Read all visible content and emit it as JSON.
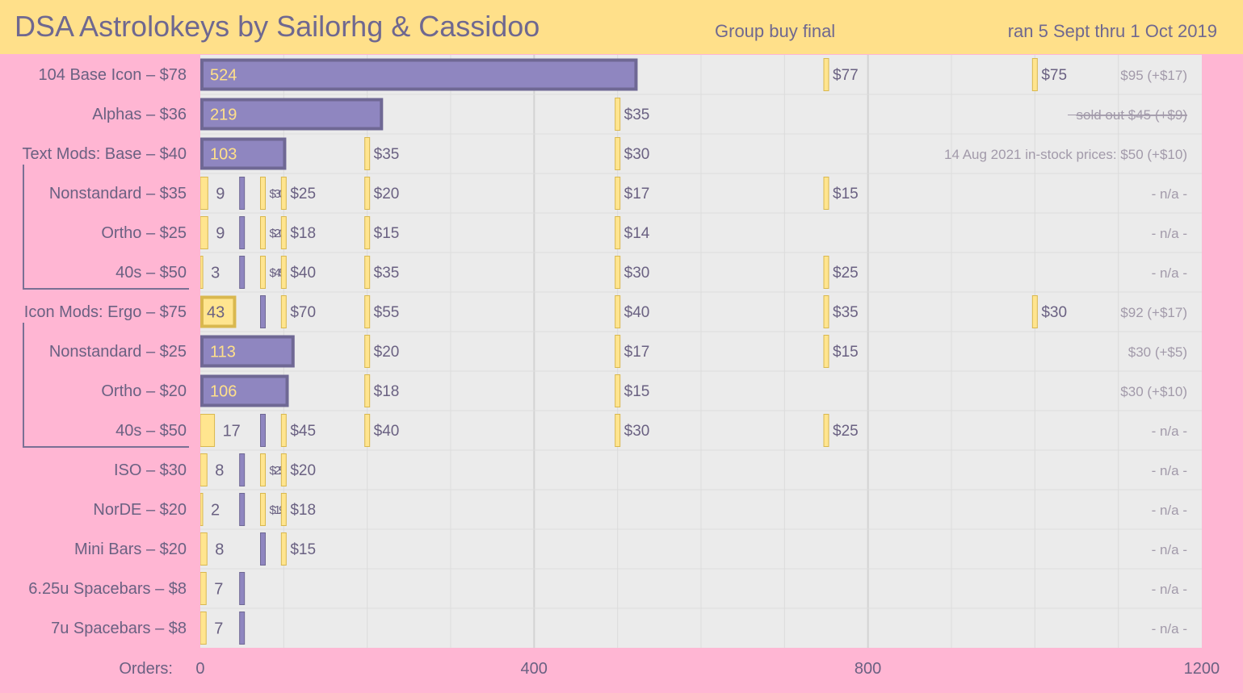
{
  "header": {
    "title": "DSA Astrolokeys by Sailorhg & Cassidoo",
    "subtitle": "Group buy final",
    "date_range": "ran 5 Sept thru 1 Oct 2019"
  },
  "colors": {
    "bar_fill": "#8f86c0",
    "bar_border": "#6f6894",
    "bar_text": "#ffe08a",
    "gold": "#ffe58f",
    "gold_dark": "#d9b84f",
    "background": "#ffb6d3",
    "plot_bg": "#ebebeb",
    "grid": "#dcdcdc",
    "muted_text": "#a29aaa"
  },
  "chart_data": {
    "type": "bar",
    "orientation": "horizontal",
    "xlabel": "Orders:",
    "xlim": [
      0,
      1200
    ],
    "x_ticks": [
      0,
      400,
      800,
      1200
    ],
    "x_tick_labels": [
      "0",
      "400",
      "800",
      "1200"
    ],
    "grid": true,
    "rows": [
      {
        "label": "104 Base Icon – $78",
        "orders": 524,
        "style": "bar",
        "tiers": [
          {
            "x": 750,
            "label": "$77"
          },
          {
            "x": 1000,
            "label": "$75"
          }
        ],
        "note": "$95 (+$17)"
      },
      {
        "label": "Alphas – $36",
        "orders": 219,
        "style": "bar",
        "tiers": [
          {
            "x": 500,
            "label": "$35"
          }
        ],
        "note": "sold out  $45  (+$9)",
        "note_struck": true
      },
      {
        "label": "Text Mods: Base – $40",
        "orders": 103,
        "style": "bar",
        "tiers": [
          {
            "x": 200,
            "label": "$35"
          },
          {
            "x": 500,
            "label": "$30"
          }
        ],
        "note": "14 Aug 2021 in-stock prices:   $50  (+$10)"
      },
      {
        "label": "Nonstandard – $35",
        "orders": 9,
        "style": "marker",
        "tiers": [
          {
            "x": 50,
            "label": ""
          },
          {
            "x": 75,
            "label": "$30",
            "small": true
          },
          {
            "x": 100,
            "label": "$25"
          },
          {
            "x": 200,
            "label": "$20"
          },
          {
            "x": 500,
            "label": "$17"
          },
          {
            "x": 750,
            "label": "$15"
          }
        ],
        "note": "- n/a -"
      },
      {
        "label": "Ortho – $25",
        "orders": 9,
        "style": "marker",
        "tiers": [
          {
            "x": 50,
            "label": ""
          },
          {
            "x": 75,
            "label": "$20",
            "small": true
          },
          {
            "x": 100,
            "label": "$18"
          },
          {
            "x": 200,
            "label": "$15"
          },
          {
            "x": 500,
            "label": "$14"
          }
        ],
        "note": "- n/a -"
      },
      {
        "label": "40s – $50",
        "orders": 3,
        "style": "marker",
        "tiers": [
          {
            "x": 50,
            "label": ""
          },
          {
            "x": 75,
            "label": "$45",
            "small": true
          },
          {
            "x": 100,
            "label": "$40"
          },
          {
            "x": 200,
            "label": "$35"
          },
          {
            "x": 500,
            "label": "$30"
          },
          {
            "x": 750,
            "label": "$25"
          }
        ],
        "note": "- n/a -"
      },
      {
        "label": "Icon Mods:  Ergo – $75",
        "orders": 43,
        "style": "goldbar",
        "tiers": [
          {
            "x": 75,
            "label": ""
          },
          {
            "x": 100,
            "label": "$70"
          },
          {
            "x": 200,
            "label": "$55"
          },
          {
            "x": 500,
            "label": "$40"
          },
          {
            "x": 750,
            "label": "$35"
          },
          {
            "x": 1000,
            "label": "$30"
          }
        ],
        "note": "$92 (+$17)"
      },
      {
        "label": "Nonstandard – $25",
        "orders": 113,
        "style": "bar",
        "tiers": [
          {
            "x": 200,
            "label": "$20"
          },
          {
            "x": 500,
            "label": "$17"
          },
          {
            "x": 750,
            "label": "$15"
          }
        ],
        "note": "$30 (+$5)"
      },
      {
        "label": "Ortho – $20",
        "orders": 106,
        "style": "bar",
        "tiers": [
          {
            "x": 200,
            "label": "$18"
          },
          {
            "x": 500,
            "label": "$15"
          }
        ],
        "note": "$30 (+$10)"
      },
      {
        "label": "40s – $50",
        "orders": 17,
        "style": "marker",
        "tiers": [
          {
            "x": 75,
            "label": ""
          },
          {
            "x": 100,
            "label": "$45"
          },
          {
            "x": 200,
            "label": "$40"
          },
          {
            "x": 500,
            "label": "$30"
          },
          {
            "x": 750,
            "label": "$25"
          }
        ],
        "note": "- n/a -"
      },
      {
        "label": "ISO – $30",
        "orders": 8,
        "style": "marker",
        "tiers": [
          {
            "x": 50,
            "label": ""
          },
          {
            "x": 75,
            "label": "$25",
            "small": true
          },
          {
            "x": 100,
            "label": "$20"
          }
        ],
        "note": "- n/a -"
      },
      {
        "label": "NorDE – $20",
        "orders": 2,
        "style": "marker",
        "tiers": [
          {
            "x": 50,
            "label": ""
          },
          {
            "x": 75,
            "label": "$19",
            "small": true
          },
          {
            "x": 100,
            "label": "$18"
          }
        ],
        "note": "- n/a -"
      },
      {
        "label": "Mini Bars – $20",
        "orders": 8,
        "style": "marker",
        "tiers": [
          {
            "x": 75,
            "label": ""
          },
          {
            "x": 100,
            "label": "$15"
          }
        ],
        "note": "- n/a -"
      },
      {
        "label": "6.25u Spacebars – $8",
        "orders": 7,
        "style": "marker",
        "tiers": [
          {
            "x": 50,
            "label": ""
          }
        ],
        "note": "- n/a -"
      },
      {
        "label": "7u Spacebars – $8",
        "orders": 7,
        "style": "marker",
        "tiers": [
          {
            "x": 50,
            "label": ""
          }
        ],
        "note": "- n/a -"
      }
    ]
  }
}
